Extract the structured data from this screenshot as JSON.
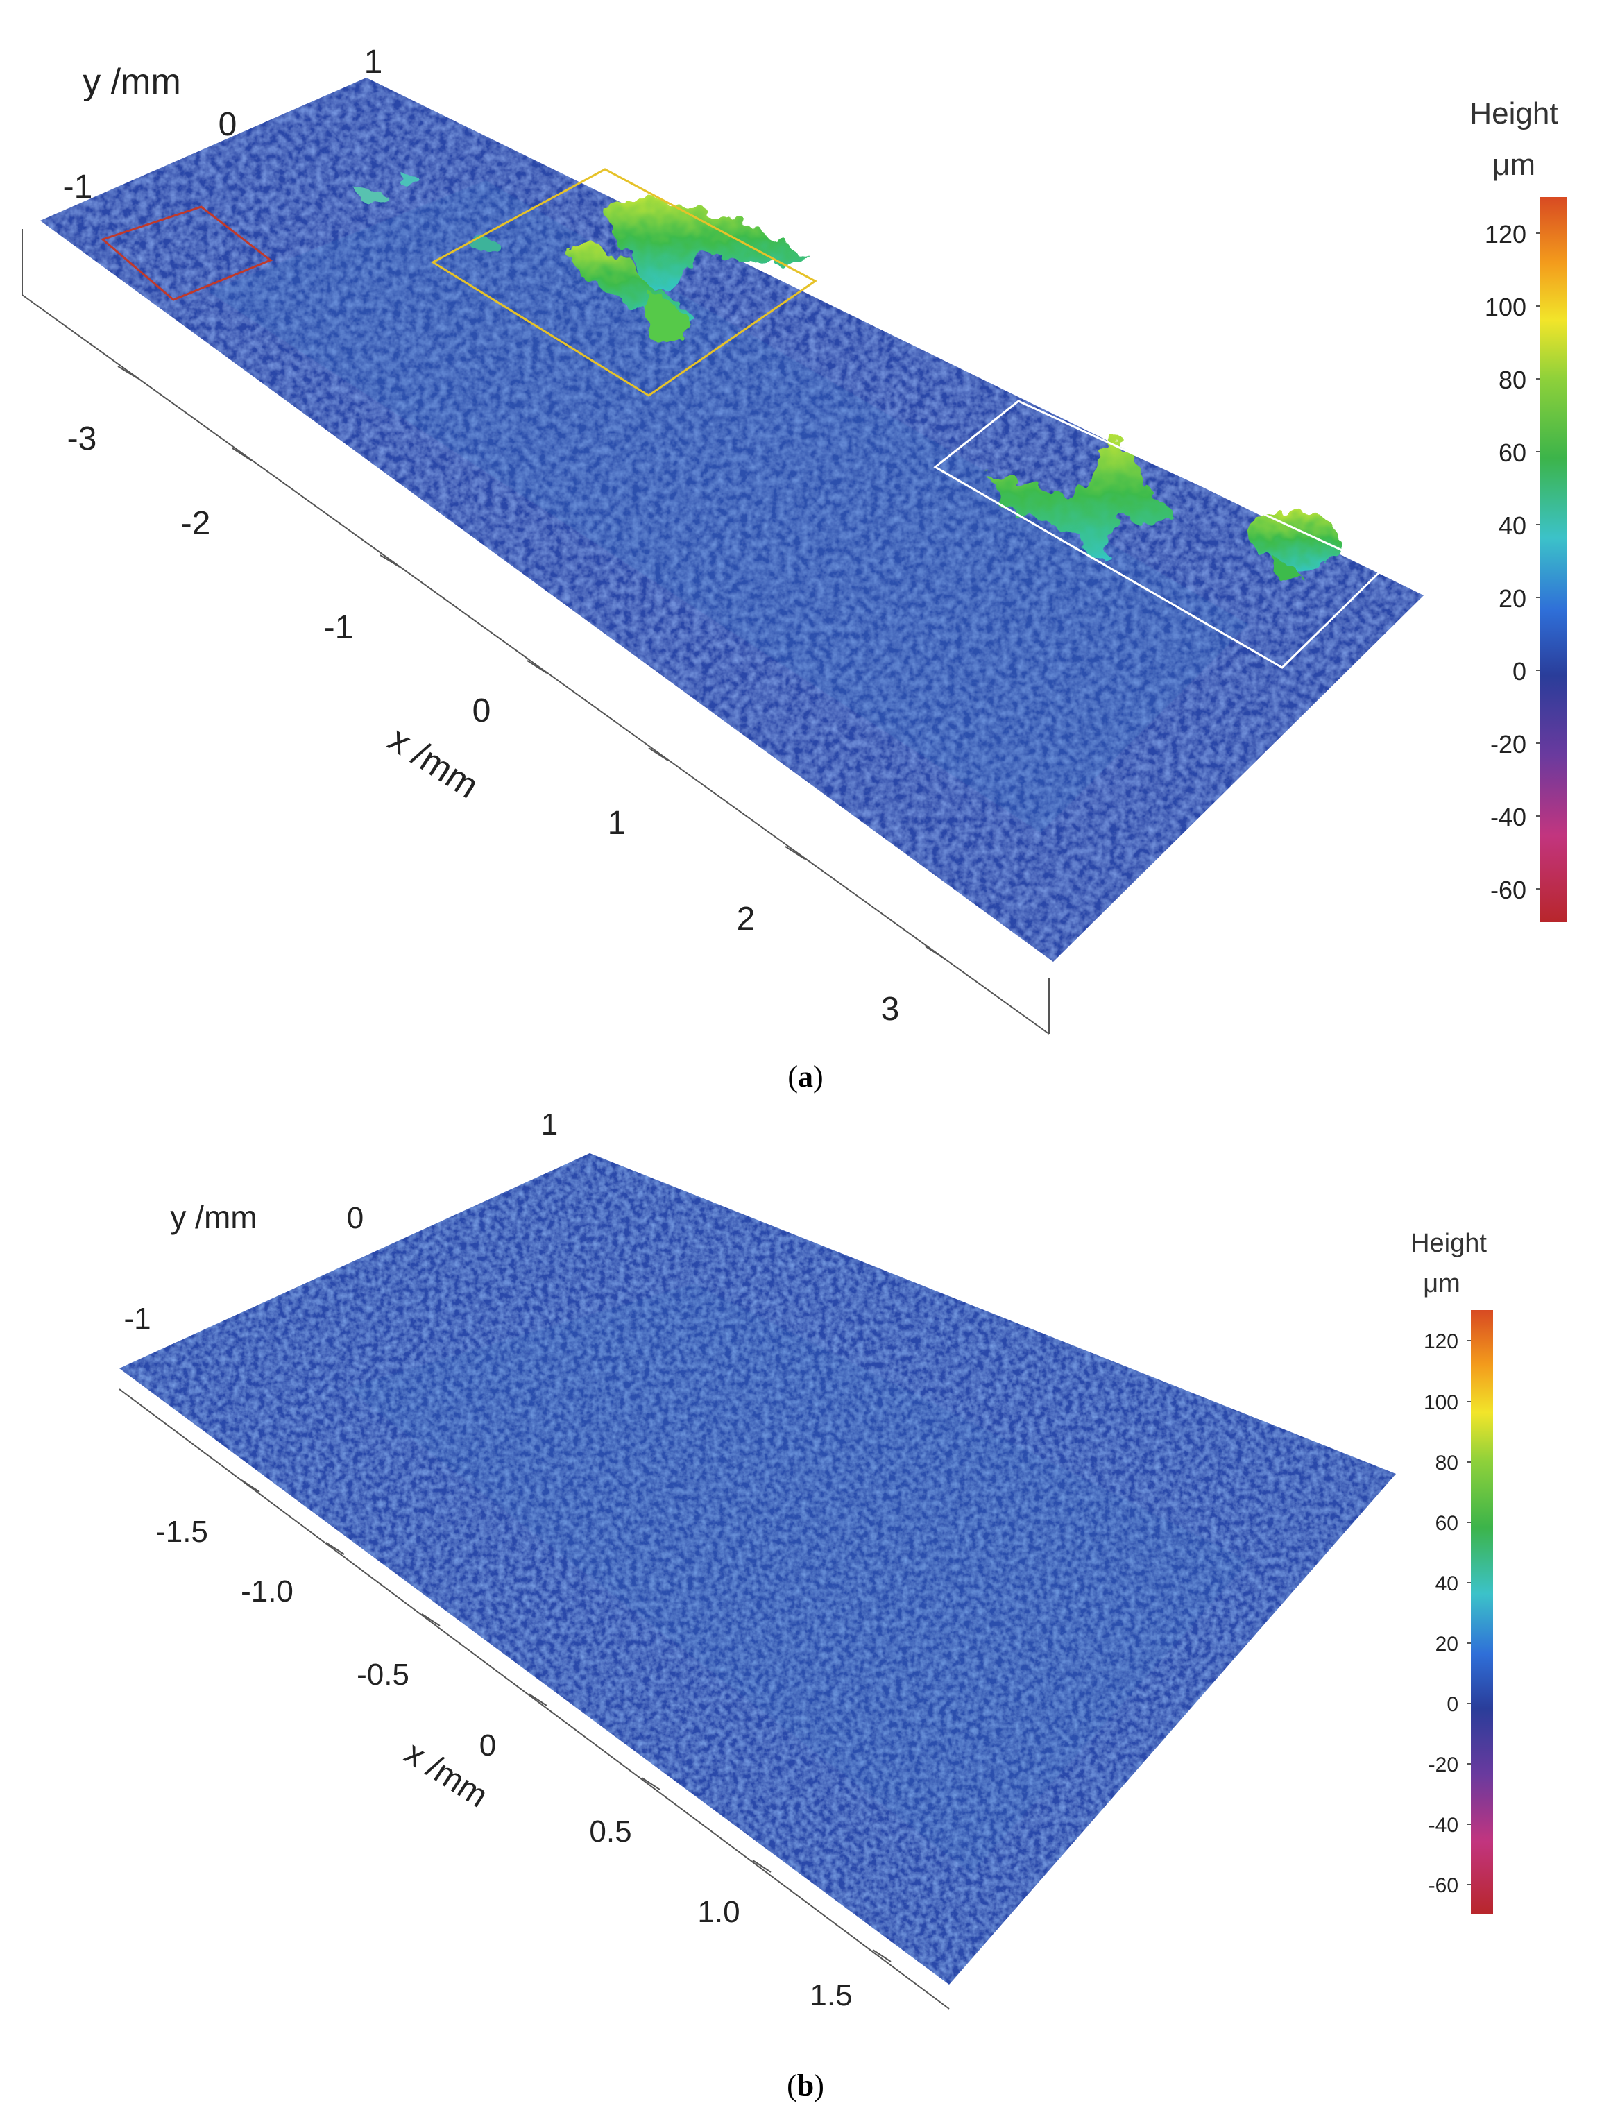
{
  "chart_data": [
    {
      "type": "surface",
      "panel_label": "a",
      "xlabel": "x /mm",
      "ylabel": "y /mm",
      "x_ticks": [
        "-3",
        "-2",
        "-1",
        "0",
        "1",
        "2",
        "3"
      ],
      "y_ticks": [
        "-1",
        "0",
        "1"
      ],
      "colorbar": {
        "title": "Height",
        "unit": "μm",
        "ticks": [
          "120",
          "100",
          "80",
          "60",
          "40",
          "20",
          "0",
          "-20",
          "-40",
          "-60"
        ],
        "range": [
          -70,
          130
        ]
      },
      "highlight_colors": {
        "box1": "#c0392b",
        "box2": "#e6c229",
        "box3": "#ffffff"
      }
    },
    {
      "type": "surface",
      "panel_label": "b",
      "xlabel": "x /mm",
      "ylabel": "y /mm",
      "x_ticks": [
        "-1.5",
        "-1.0",
        "-0.5",
        "0",
        "0.5",
        "1.0",
        "1.5"
      ],
      "y_ticks": [
        "-1",
        "0",
        "1"
      ],
      "colorbar": {
        "title": "Height",
        "unit": "μm",
        "ticks": [
          "120",
          "100",
          "80",
          "60",
          "40",
          "20",
          "0",
          "-20",
          "-40",
          "-60"
        ],
        "range": [
          -70,
          130
        ]
      }
    }
  ]
}
